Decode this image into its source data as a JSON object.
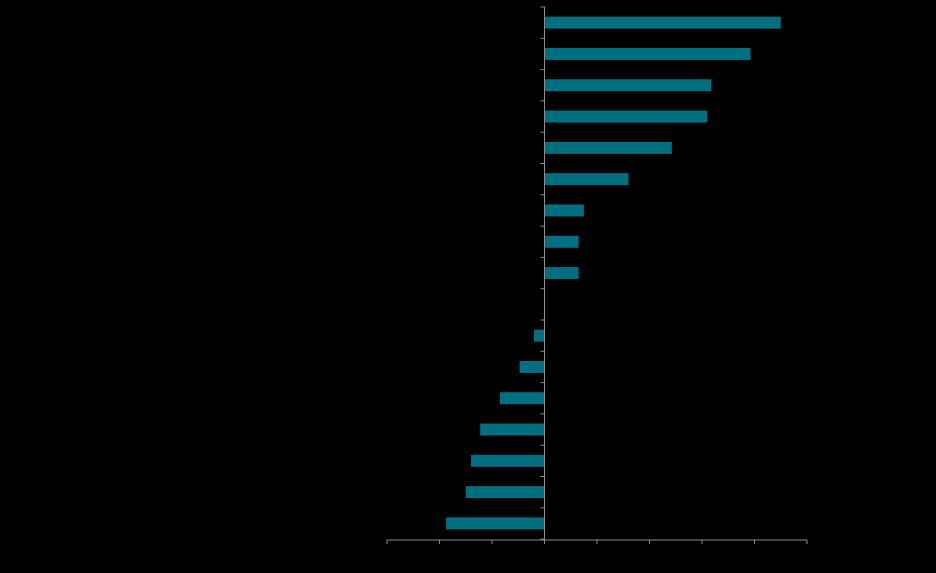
{
  "chart_data": {
    "type": "bar",
    "orientation": "horizontal",
    "title": "",
    "xlabel": "",
    "ylabel": "",
    "categories": [
      "",
      "",
      "",
      "",
      "",
      "",
      "",
      "",
      "",
      "",
      "",
      "",
      "",
      "",
      "",
      "",
      ""
    ],
    "values": [
      9.0,
      7.85,
      6.35,
      6.2,
      4.85,
      3.2,
      1.5,
      1.3,
      1.3,
      0,
      -0.4,
      -0.95,
      -1.7,
      -2.45,
      -2.8,
      -3.0,
      -3.75
    ],
    "xlim": [
      -6,
      10
    ],
    "x_tick_step": 2,
    "grid": false,
    "legend": "none",
    "bar_color": "#007080",
    "axis_color": "#8c8c8c",
    "background_color": "#000000"
  }
}
